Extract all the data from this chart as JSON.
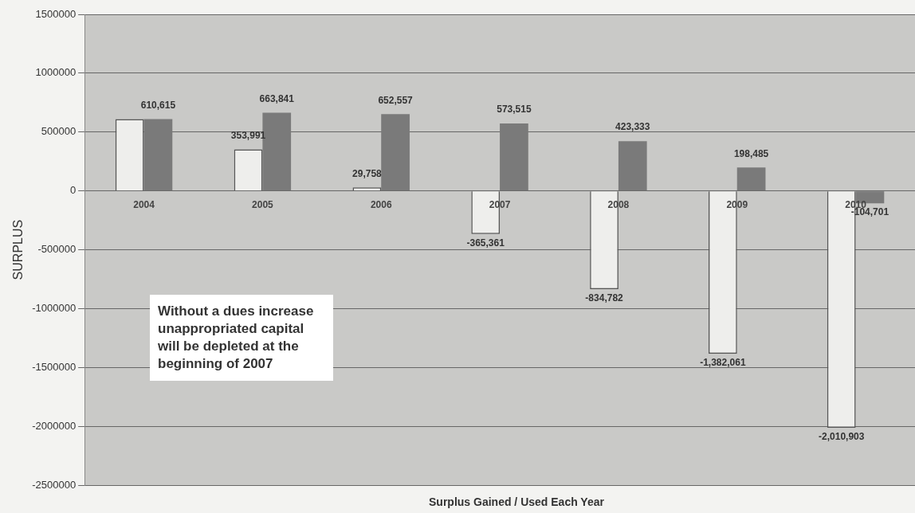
{
  "chart_data": {
    "type": "bar",
    "xlabel": "Surplus Gained / Used Each Year",
    "ylabel": "SURPLUS",
    "categories": [
      "2004",
      "2005",
      "2006",
      "2007",
      "2008",
      "2009",
      "2010"
    ],
    "series": [
      {
        "color": "#eeeeec",
        "values": [
          610615,
          353991,
          29758,
          -365361,
          -834782,
          -1382061,
          -2010903
        ],
        "value_labels": [
          null,
          "353,991",
          "29,758",
          "-365,361",
          "-834,782",
          "-1,382,061",
          "-2,010,903"
        ]
      },
      {
        "color": "#7a7a7a",
        "values": [
          610615,
          663841,
          652557,
          573515,
          423333,
          198485,
          -104701
        ],
        "value_labels": [
          "610,615",
          "663,841",
          "652,557",
          "573,515",
          "423,333",
          "198,485",
          "-104,701"
        ]
      }
    ],
    "ylim": [
      -2500000,
      1500000
    ],
    "yticks": [
      -2500000,
      -2000000,
      -1500000,
      -1000000,
      -500000,
      0,
      500000,
      1000000,
      1500000
    ],
    "grid": "y",
    "legend": false,
    "annotations": [
      "Without a dues increase unappropriated capital will be depleted at the beginning of 2007"
    ]
  }
}
